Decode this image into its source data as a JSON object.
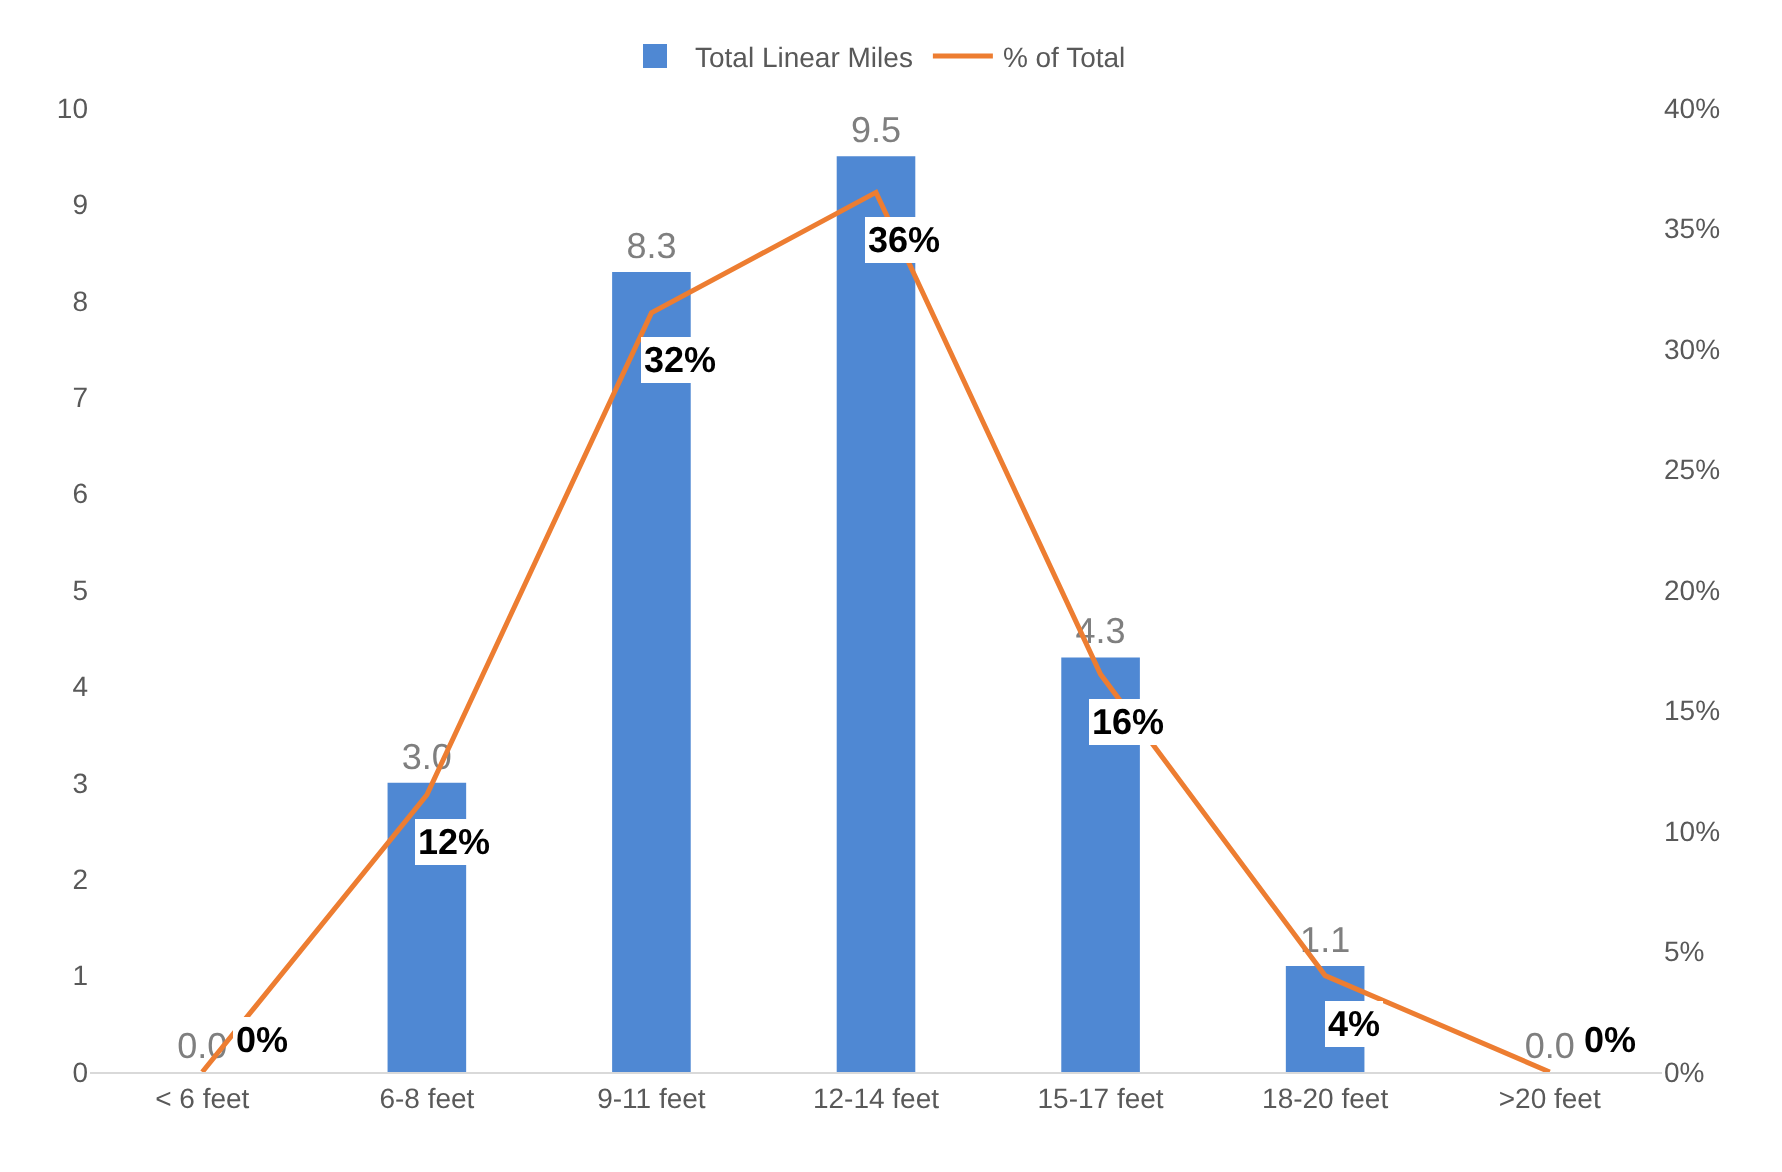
{
  "chart_data": {
    "type": "bar",
    "categories": [
      "< 6 feet",
      "6-8 feet",
      "9-11 feet",
      "12-14 feet",
      "15-17 feet",
      "18-20 feet",
      ">20 feet"
    ],
    "series": [
      {
        "name": "Total Linear Miles",
        "color": "#4f88d3",
        "values": [
          0.0,
          3.0,
          8.3,
          9.5,
          4.3,
          1.1,
          0.0
        ],
        "value_labels": [
          "0.0",
          "3.0",
          "8.3",
          "9.5",
          "4.3",
          "1.1",
          "0.0"
        ]
      },
      {
        "name": "% of Total",
        "type": "line",
        "axis": "y2",
        "color": "#ed7d31",
        "values": [
          0,
          11.5,
          31.5,
          36.5,
          16.5,
          4,
          0
        ],
        "value_labels": [
          "0%",
          "12%",
          "32%",
          "36%",
          "16%",
          "4%",
          "0%"
        ]
      }
    ],
    "ylim": [
      0,
      10
    ],
    "yticks": [
      0,
      1,
      2,
      3,
      4,
      5,
      6,
      7,
      8,
      9,
      10
    ],
    "y2lim": [
      0,
      40
    ],
    "y2ticks": [
      {
        "value": 0,
        "label": "0%"
      },
      {
        "value": 5,
        "label": "5%"
      },
      {
        "value": 10,
        "label": "10%"
      },
      {
        "value": 15,
        "label": "15%"
      },
      {
        "value": 20,
        "label": "20%"
      },
      {
        "value": 25,
        "label": "25%"
      },
      {
        "value": 30,
        "label": "30%"
      },
      {
        "value": 35,
        "label": "35%"
      },
      {
        "value": 40,
        "label": "40%"
      }
    ],
    "grid": false,
    "legend": "top",
    "line_style": "solid"
  }
}
